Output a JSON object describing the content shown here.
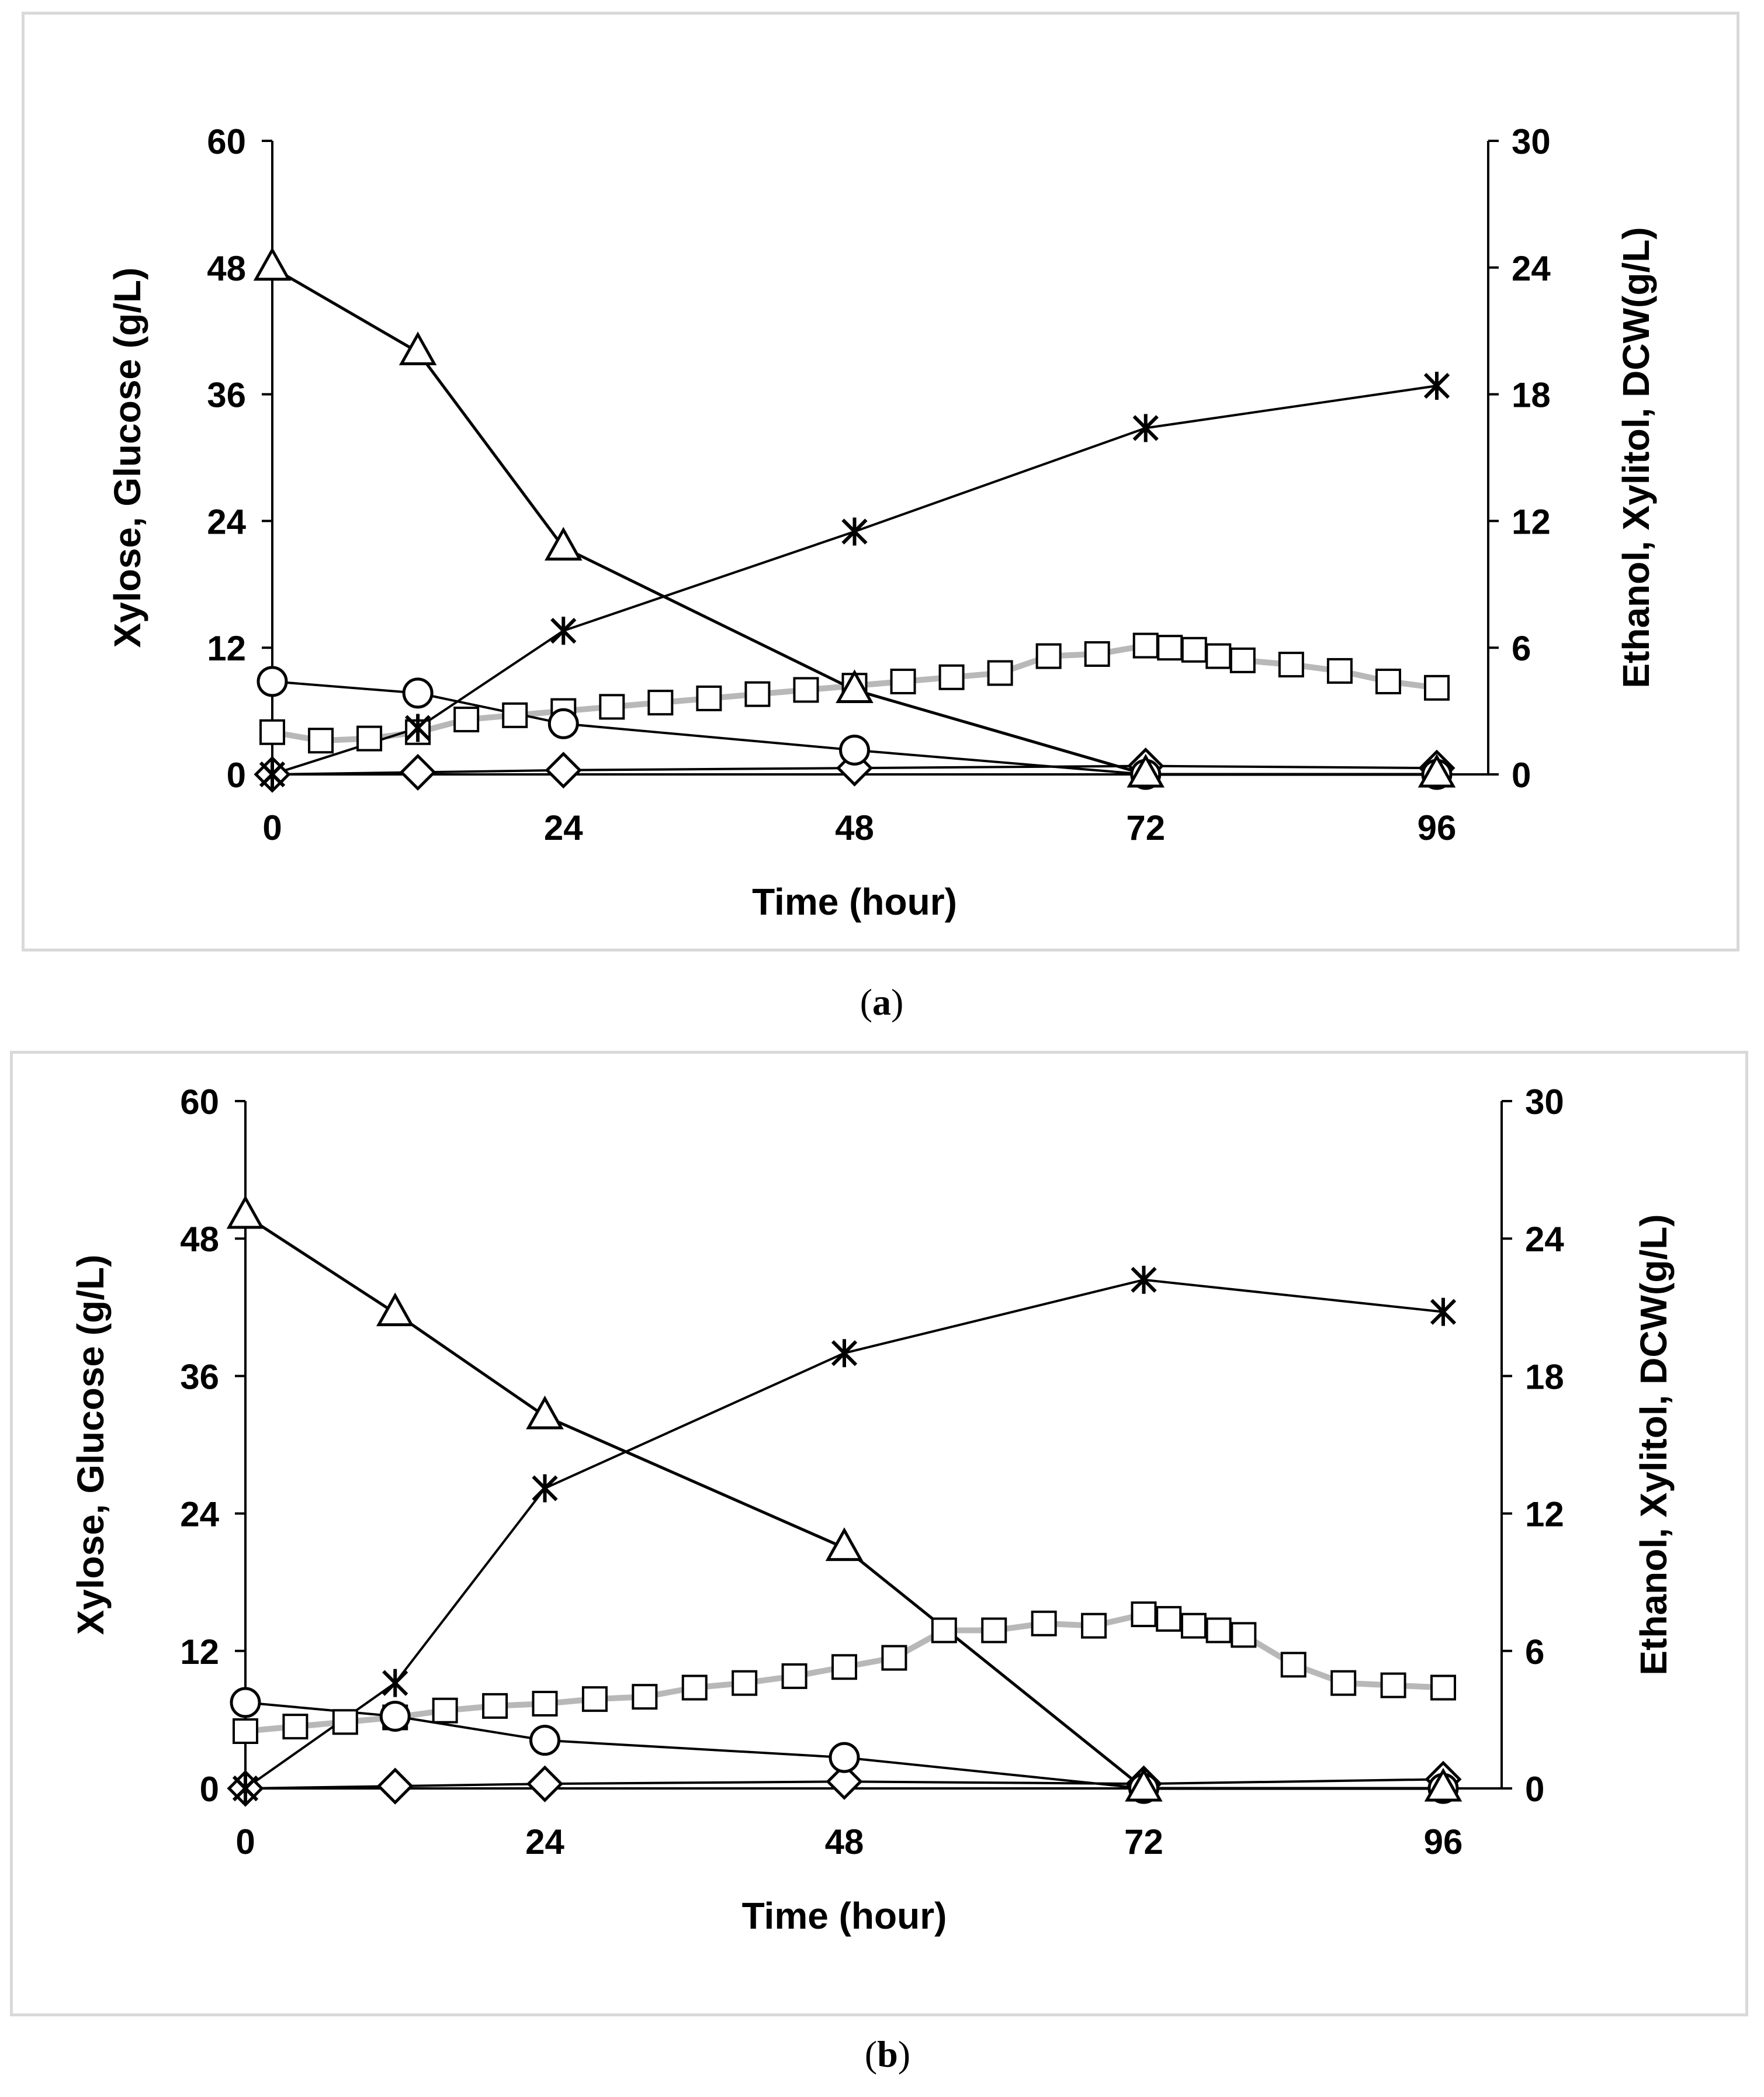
{
  "chart_data": [
    {
      "type": "line",
      "panel_label": "a",
      "xlabel": "Time (hour)",
      "ylabel_left": "Xylose, Glucose (g/L)",
      "ylabel_right": "Ethanol, Xylitol, DCW(g/L)",
      "xlim": [
        0,
        96
      ],
      "ylim_left": [
        0,
        60
      ],
      "ylim_right": [
        0,
        30
      ],
      "xticks": [
        "0",
        "24",
        "48",
        "72",
        "96"
      ],
      "yticks_left": [
        "0",
        "12",
        "24",
        "36",
        "48",
        "60"
      ],
      "yticks_right": [
        "0",
        "6",
        "12",
        "18",
        "24",
        "30"
      ],
      "series": [
        {
          "name": "Xylose",
          "axis": "left",
          "marker": "triangle",
          "x": [
            0,
            12,
            24,
            48,
            72,
            96
          ],
          "values": [
            48,
            40,
            21.5,
            8,
            0,
            0
          ]
        },
        {
          "name": "Glucose",
          "axis": "left",
          "marker": "circle",
          "x": [
            0,
            12,
            24,
            48,
            72,
            96
          ],
          "values": [
            8.8,
            7.7,
            4.8,
            2.3,
            0,
            0
          ]
        },
        {
          "name": "Ethanol",
          "axis": "right",
          "marker": "asterisk",
          "x": [
            0,
            12,
            24,
            48,
            72,
            96
          ],
          "values": [
            0,
            2.2,
            6.8,
            11.5,
            16.4,
            18.4
          ]
        },
        {
          "name": "Xylitol",
          "axis": "right",
          "marker": "diamond",
          "x": [
            0,
            12,
            24,
            48,
            72,
            96
          ],
          "values": [
            0,
            0.1,
            0.2,
            0.3,
            0.4,
            0.3
          ]
        },
        {
          "name": "DCW",
          "axis": "right",
          "marker": "square",
          "x": [
            0,
            4,
            8,
            12,
            16,
            20,
            24,
            28,
            32,
            36,
            40,
            44,
            48,
            52,
            56,
            60,
            64,
            68,
            72,
            74,
            76,
            78,
            80,
            84,
            88,
            92,
            96
          ],
          "values": [
            2.0,
            1.6,
            1.7,
            2.0,
            2.6,
            2.8,
            3.0,
            3.2,
            3.4,
            3.6,
            3.8,
            4.0,
            4.2,
            4.4,
            4.6,
            4.8,
            5.6,
            5.7,
            6.1,
            6.0,
            5.9,
            5.6,
            5.4,
            5.2,
            4.9,
            4.4,
            4.1
          ]
        }
      ]
    },
    {
      "type": "line",
      "panel_label": "b",
      "xlabel": "Time (hour)",
      "ylabel_left": "Xylose, Glucose (g/L)",
      "ylabel_right": "Ethanol, Xylitol, DCW(g/L)",
      "xlim": [
        0,
        96
      ],
      "ylim_left": [
        0,
        60
      ],
      "ylim_right": [
        0,
        30
      ],
      "xticks": [
        "0",
        "24",
        "48",
        "72",
        "96"
      ],
      "yticks_left": [
        "0",
        "12",
        "24",
        "36",
        "48",
        "60"
      ],
      "yticks_right": [
        "0",
        "6",
        "12",
        "18",
        "24",
        "30"
      ],
      "series": [
        {
          "name": "Xylose",
          "axis": "left",
          "marker": "triangle",
          "x": [
            0,
            12,
            24,
            48,
            72,
            96
          ],
          "values": [
            50,
            41.5,
            32.5,
            21,
            0,
            0
          ]
        },
        {
          "name": "Glucose",
          "axis": "left",
          "marker": "circle",
          "x": [
            0,
            12,
            24,
            48,
            72,
            96
          ],
          "values": [
            7.5,
            6.3,
            4.2,
            2.7,
            0,
            0
          ]
        },
        {
          "name": "Ethanol",
          "axis": "right",
          "marker": "asterisk",
          "x": [
            0,
            12,
            24,
            48,
            72,
            96
          ],
          "values": [
            0,
            4.6,
            13.1,
            19,
            22.2,
            20.8
          ]
        },
        {
          "name": "Xylitol",
          "axis": "right",
          "marker": "diamond",
          "x": [
            0,
            12,
            24,
            48,
            72,
            96
          ],
          "values": [
            0,
            0.1,
            0.2,
            0.3,
            0.2,
            0.4
          ]
        },
        {
          "name": "DCW",
          "axis": "right",
          "marker": "square",
          "x": [
            0,
            4,
            8,
            12,
            16,
            20,
            24,
            28,
            32,
            36,
            40,
            44,
            48,
            52,
            56,
            60,
            64,
            68,
            72,
            74,
            76,
            78,
            80,
            84,
            88,
            92,
            96
          ],
          "values": [
            2.5,
            2.7,
            2.9,
            3.1,
            3.4,
            3.6,
            3.7,
            3.9,
            4.0,
            4.4,
            4.6,
            4.9,
            5.3,
            5.7,
            6.9,
            6.9,
            7.2,
            7.1,
            7.6,
            7.4,
            7.1,
            6.9,
            6.7,
            5.4,
            4.6,
            4.5,
            4.4
          ]
        }
      ]
    }
  ]
}
